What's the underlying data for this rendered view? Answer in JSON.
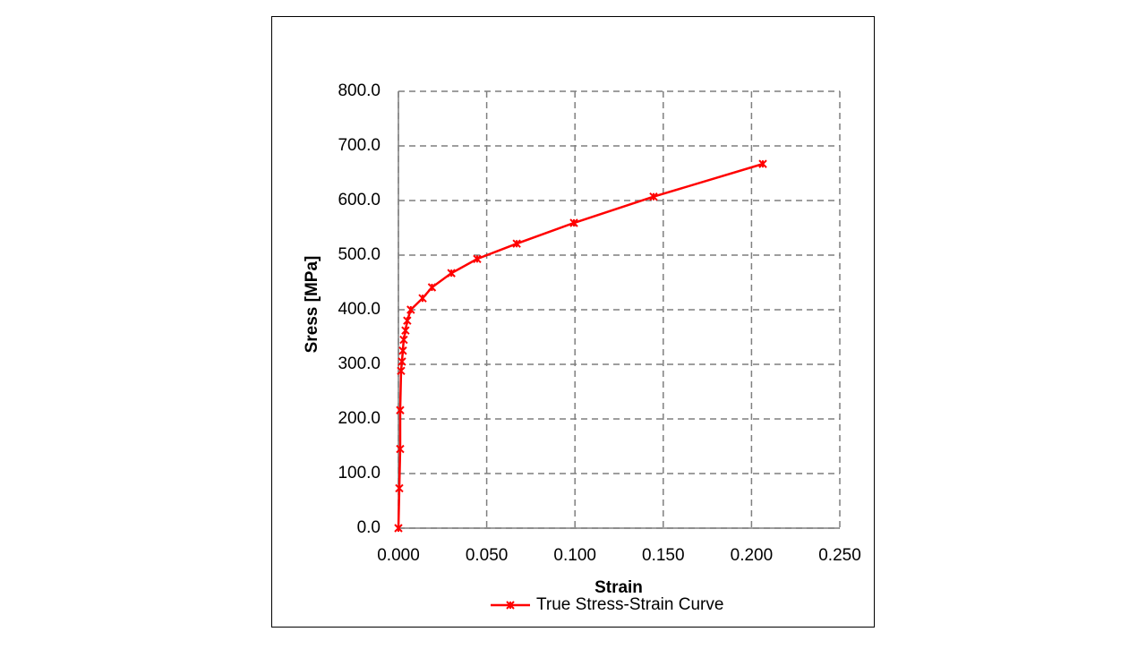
{
  "chart_data": {
    "type": "scatter-line",
    "xlabel": "Strain",
    "ylabel": "Sress [MPa]",
    "xlim": [
      0,
      0.25
    ],
    "ylim": [
      0,
      800
    ],
    "xticks": [
      {
        "value": 0,
        "label": "0.000"
      },
      {
        "value": 0.05,
        "label": "0.050"
      },
      {
        "value": 0.1,
        "label": "0.100"
      },
      {
        "value": 0.15,
        "label": "0.150"
      },
      {
        "value": 0.2,
        "label": "0.200"
      },
      {
        "value": 0.25,
        "label": "0.250"
      }
    ],
    "yticks": [
      {
        "value": 0,
        "label": "0.0"
      },
      {
        "value": 100,
        "label": "100.0"
      },
      {
        "value": 200,
        "label": "200.0"
      },
      {
        "value": 300,
        "label": "300.0"
      },
      {
        "value": 400,
        "label": "400.0"
      },
      {
        "value": 500,
        "label": "500.0"
      },
      {
        "value": 600,
        "label": "600.0"
      },
      {
        "value": 700,
        "label": "700.0"
      },
      {
        "value": 800,
        "label": "800.0"
      }
    ],
    "grid": true,
    "legend": "bottom",
    "series": [
      {
        "name": "True Stress-Strain Curve",
        "color": "#ff0000",
        "x": [
          0,
          0.0005,
          0.001,
          0.001,
          0.0015,
          0.002,
          0.0025,
          0.003,
          0.004,
          0.005,
          0.007,
          0.0137,
          0.019,
          0.03,
          0.0446,
          0.067,
          0.0994,
          0.1445,
          0.2064
        ],
        "values": [
          0,
          73,
          145,
          216,
          288,
          305,
          325,
          345,
          362,
          380,
          400,
          421,
          441,
          467,
          493,
          521,
          559,
          607,
          667
        ]
      }
    ]
  }
}
